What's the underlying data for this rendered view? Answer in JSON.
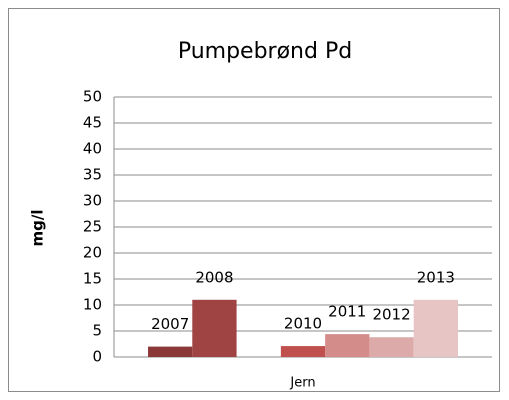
{
  "chart_data": {
    "type": "bar",
    "title": "Pumpebrønd Pd",
    "y_label": "mg/l",
    "categories": [
      "Jern"
    ],
    "series": [
      {
        "name": "2007",
        "color": "#8b3838",
        "values": [
          2
        ]
      },
      {
        "name": "2008",
        "color": "#a04343",
        "values": [
          11
        ]
      },
      {
        "name": null,
        "color": "#b04a48",
        "values": [
          null
        ]
      },
      {
        "name": "2010",
        "color": "#c0504d",
        "values": [
          2.1
        ]
      },
      {
        "name": "2011",
        "color": "#d38c8a",
        "values": [
          4.4
        ]
      },
      {
        "name": "2012",
        "color": "#dcaaa8",
        "values": [
          3.8
        ]
      },
      {
        "name": "2013",
        "color": "#e6c5c4",
        "values": [
          11
        ]
      }
    ],
    "ylim": [
      0,
      50
    ],
    "yticks": [
      0,
      5,
      10,
      15,
      20,
      25,
      30,
      35,
      40,
      45,
      50
    ],
    "grid": true
  }
}
